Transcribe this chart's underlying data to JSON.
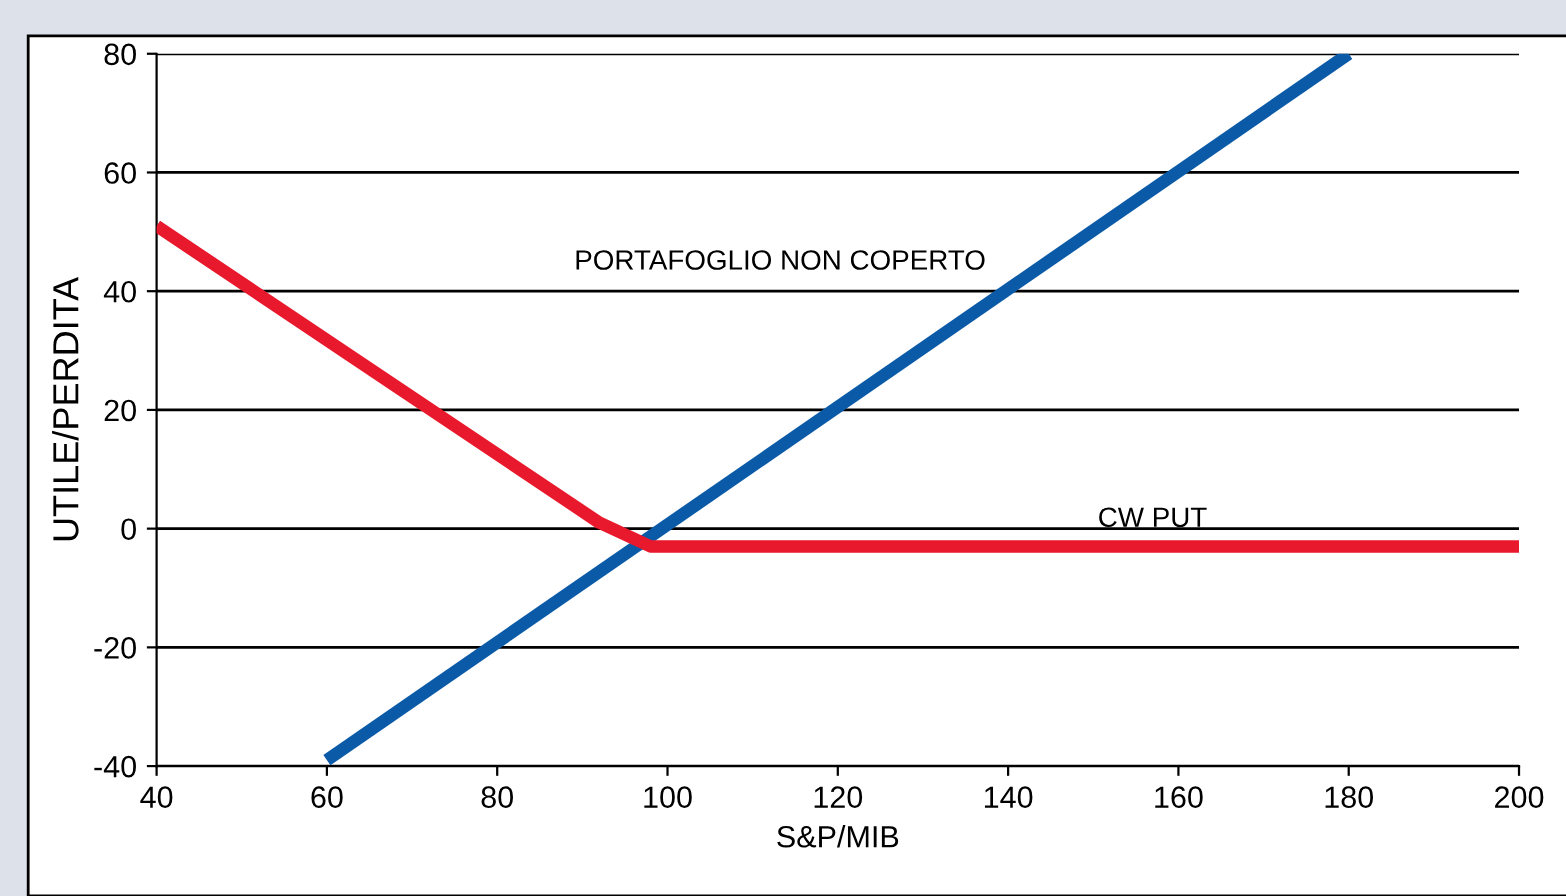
{
  "chart_data": {
    "type": "line",
    "xlabel": "S&P/MIB",
    "ylabel": "UTILE/PERDITA",
    "xlim": [
      40,
      200
    ],
    "xticks": [
      40,
      60,
      80,
      100,
      120,
      140,
      160,
      180,
      200
    ],
    "ylim": [
      -40,
      80
    ],
    "yticks": [
      -40,
      -20,
      0,
      20,
      40,
      60,
      80
    ],
    "grid": "y",
    "series": [
      {
        "name": "PORTAFOGLIO NON COPERTO",
        "color": "#0a5aa8",
        "x": [
          60,
          180
        ],
        "values": [
          -39,
          80
        ]
      },
      {
        "name": "CW PUT",
        "color": "#e8192c",
        "x": [
          40,
          92,
          98,
          200
        ],
        "values": [
          51,
          1,
          -3,
          -3
        ]
      }
    ]
  }
}
